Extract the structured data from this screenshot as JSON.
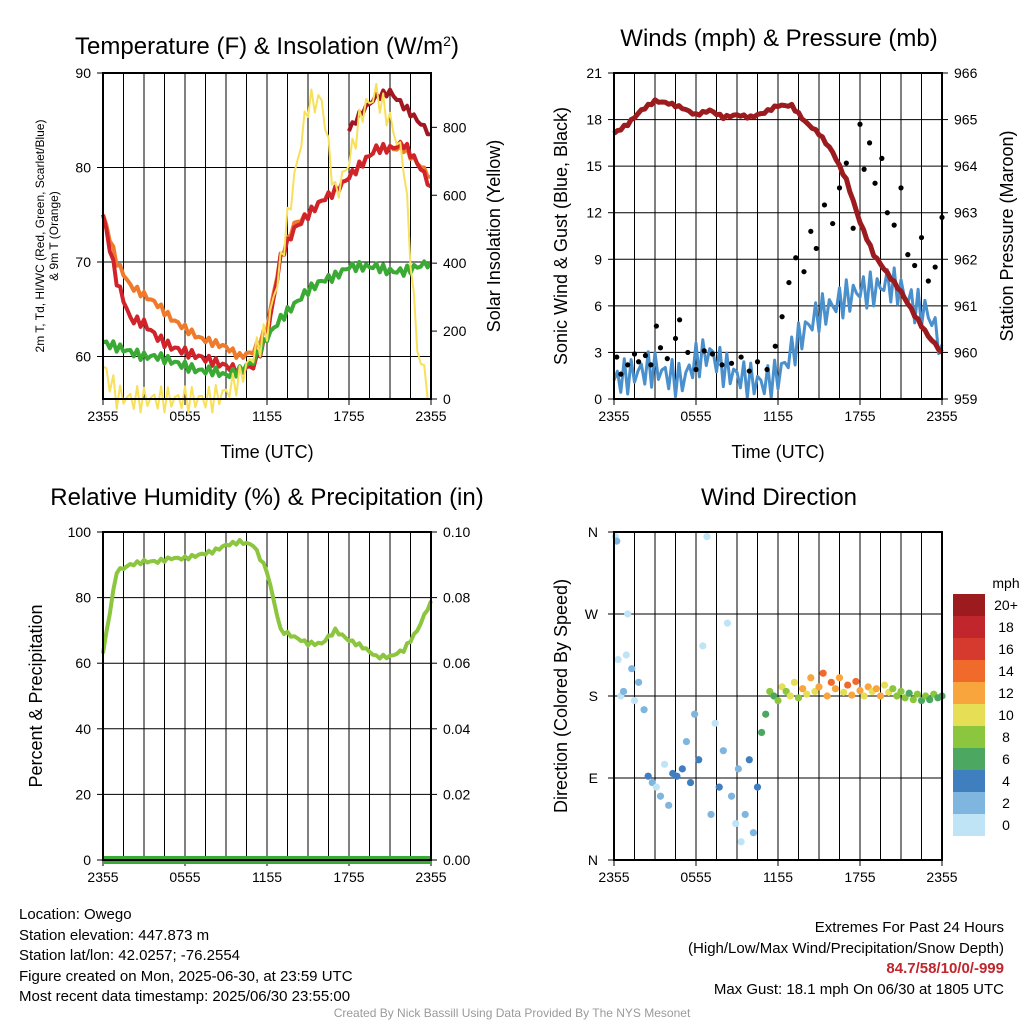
{
  "chart_data": [
    {
      "type": "line",
      "title": "Temperature (F) & Insolation (W/m²)",
      "xlabel": "Time (UTC)",
      "ylabel": "2m T, Td, HI/WC (Red, Green, Scarlet/Blue) & 9m T (Orange)",
      "y2label": "Solar Insolation (Yellow)",
      "x_ticks": [
        "2355",
        "0555",
        "1155",
        "1755",
        "2355"
      ],
      "ylim": [
        55.5,
        90
      ],
      "y_ticks": [
        60,
        70,
        80,
        90
      ],
      "y2lim": [
        0,
        960
      ],
      "y2_ticks": [
        0,
        200,
        400,
        600,
        800
      ],
      "grid": true,
      "x_hours": [
        0,
        1,
        2,
        3,
        4,
        5,
        6,
        7,
        8,
        9,
        10,
        11,
        12,
        13,
        14,
        15,
        16,
        17,
        18,
        19,
        20,
        21,
        22,
        23,
        24
      ],
      "series": [
        {
          "color": "#f07a2b",
          "axis": "left",
          "values": [
            75,
            70,
            67.5,
            66.5,
            65.5,
            64,
            63,
            62,
            61.5,
            61,
            60,
            60.5,
            63,
            70.5,
            74,
            75,
            76.5,
            77.5,
            79,
            80.5,
            82,
            82,
            82,
            80.5,
            79
          ]
        },
        {
          "color": "#d0232a",
          "axis": "left",
          "values": [
            75,
            68,
            64,
            63.5,
            62,
            61,
            60.5,
            60,
            59.5,
            59,
            58.5,
            59,
            62,
            70.5,
            73.5,
            75,
            76.5,
            77.5,
            79,
            80.5,
            82,
            82,
            82.5,
            80.5,
            78
          ]
        },
        {
          "color": "#a31820",
          "axis": "left",
          "values": [
            null,
            null,
            null,
            null,
            null,
            null,
            null,
            null,
            null,
            null,
            null,
            null,
            null,
            null,
            null,
            null,
            null,
            null,
            84,
            86,
            87.5,
            88,
            86.5,
            85,
            83.5
          ]
        },
        {
          "color": "#3aaa35",
          "axis": "left",
          "values": [
            61.5,
            61,
            60.5,
            60,
            60,
            59.5,
            59,
            58.5,
            58.5,
            58,
            58.5,
            59.5,
            62,
            64,
            65.5,
            67,
            68,
            68.5,
            69.5,
            69.5,
            69.5,
            69,
            69,
            69.5,
            70
          ]
        },
        {
          "color": "#f7e05a",
          "axis": "right",
          "values": [
            95,
            10,
            0,
            0,
            0,
            0,
            0,
            0,
            0,
            20,
            60,
            130,
            200,
            400,
            650,
            870,
            880,
            600,
            700,
            850,
            900,
            820,
            700,
            150,
            0
          ]
        }
      ]
    },
    {
      "type": "line",
      "title": "Winds (mph) & Pressure (mb)",
      "xlabel": "Time (UTC)",
      "ylabel": "Sonic Wind & Gust (Blue, Black)",
      "y2label": "Station Pressure (Maroon)",
      "x_ticks": [
        "2355",
        "0555",
        "1155",
        "1755",
        "2355"
      ],
      "ylim": [
        0,
        21
      ],
      "y_ticks": [
        0,
        3,
        6,
        9,
        12,
        15,
        18,
        21
      ],
      "y2lim": [
        959,
        966
      ],
      "y2_ticks": [
        959,
        960,
        961,
        962,
        963,
        964,
        965,
        966
      ],
      "grid": true,
      "x_hours": [
        0,
        1,
        2,
        3,
        4,
        5,
        6,
        7,
        8,
        9,
        10,
        11,
        12,
        13,
        14,
        15,
        16,
        17,
        18,
        19,
        20,
        21,
        22,
        23,
        24
      ],
      "series": [
        {
          "color": "#4a90cc",
          "axis": "left",
          "values": [
            1.2,
            1.5,
            1.8,
            2.0,
            1.5,
            1.2,
            2.5,
            3.0,
            2.0,
            1.5,
            1.2,
            1.0,
            1.5,
            3.0,
            4.5,
            5.5,
            6.0,
            6.5,
            7.0,
            7.0,
            7.5,
            7.0,
            6.0,
            5.5,
            3.5
          ]
        },
        {
          "color": "#9b1b1e",
          "axis": "right",
          "values": [
            964.7,
            964.9,
            965.2,
            965.4,
            965.35,
            965.25,
            965.1,
            965.2,
            965.05,
            965.1,
            965.05,
            965.15,
            965.3,
            965.3,
            964.95,
            964.7,
            964.3,
            963.7,
            962.8,
            962.1,
            961.7,
            961.3,
            960.8,
            960.35,
            960.0
          ]
        }
      ],
      "gust_points": [
        [
          0.2,
          2.7
        ],
        [
          0.5,
          1.6
        ],
        [
          1.0,
          2.2
        ],
        [
          1.5,
          2.9
        ],
        [
          1.8,
          2.4
        ],
        [
          2.3,
          2.8
        ],
        [
          2.7,
          2.2
        ],
        [
          3.1,
          4.7
        ],
        [
          3.4,
          3.3
        ],
        [
          3.9,
          2.6
        ],
        [
          4.5,
          3.9
        ],
        [
          4.8,
          5.1
        ],
        [
          5.4,
          3.0
        ],
        [
          6.0,
          1.9
        ],
        [
          6.6,
          3.1
        ],
        [
          7.2,
          2.9
        ],
        [
          7.9,
          2.2
        ],
        [
          8.6,
          2.3
        ],
        [
          9.3,
          2.7
        ],
        [
          9.9,
          1.8
        ],
        [
          10.5,
          2.4
        ],
        [
          11.2,
          1.9
        ],
        [
          11.8,
          3.4
        ],
        [
          12.3,
          5.3
        ],
        [
          12.8,
          7.5
        ],
        [
          13.3,
          9.1
        ],
        [
          13.9,
          8.2
        ],
        [
          14.4,
          10.8
        ],
        [
          14.8,
          9.7
        ],
        [
          15.4,
          12.5
        ],
        [
          16.0,
          11.3
        ],
        [
          16.5,
          13.6
        ],
        [
          17.0,
          15.2
        ],
        [
          17.5,
          11.0
        ],
        [
          18.0,
          17.7
        ],
        [
          18.3,
          14.8
        ],
        [
          18.7,
          16.5
        ],
        [
          19.1,
          13.9
        ],
        [
          19.6,
          15.5
        ],
        [
          20.0,
          12.0
        ],
        [
          20.5,
          11.2
        ],
        [
          21.0,
          13.6
        ],
        [
          21.5,
          9.3
        ],
        [
          22.0,
          8.6
        ],
        [
          22.5,
          10.4
        ],
        [
          23.0,
          7.6
        ],
        [
          23.5,
          8.5
        ],
        [
          24.0,
          11.7
        ]
      ]
    },
    {
      "type": "line",
      "title": "Relative Humidity (%) & Precipitation (in)",
      "ylabel": "Percent & Precipitation",
      "x_ticks": [
        "2355",
        "0555",
        "1155",
        "1755",
        "2355"
      ],
      "ylim": [
        0,
        100
      ],
      "y_ticks": [
        0,
        20,
        40,
        60,
        80,
        100
      ],
      "y2lim": [
        0,
        0.1
      ],
      "y2_ticks": [
        "0.00",
        "0.02",
        "0.04",
        "0.06",
        "0.08",
        "0.10"
      ],
      "grid": true,
      "x_hours": [
        0,
        1,
        2,
        3,
        4,
        5,
        6,
        7,
        8,
        9,
        10,
        11,
        12,
        13,
        14,
        15,
        16,
        17,
        18,
        19,
        20,
        21,
        22,
        23,
        24
      ],
      "series": [
        {
          "color": "#8cc63f",
          "axis": "left",
          "values": [
            63,
            88,
            90,
            91,
            91,
            92,
            92,
            93,
            94,
            96,
            97,
            96,
            88,
            70,
            68,
            66,
            66,
            70,
            67,
            65,
            62,
            62,
            64,
            70,
            79
          ]
        },
        {
          "color": "#3aaa35",
          "axis": "right",
          "values": [
            0,
            0,
            0,
            0,
            0,
            0,
            0,
            0,
            0,
            0,
            0,
            0,
            0,
            0,
            0,
            0,
            0,
            0,
            0,
            0,
            0,
            0,
            0,
            0,
            0
          ]
        }
      ]
    },
    {
      "type": "scatter",
      "title": "Wind Direction",
      "ylabel": "Direction (Colored By Speed)",
      "x_ticks": [
        "2355",
        "0555",
        "1155",
        "1755",
        "2355"
      ],
      "y_ticks": [
        "N",
        "E",
        "S",
        "W",
        "N"
      ],
      "ylim": [
        0,
        360
      ],
      "grid": true,
      "colorbar": {
        "unit": "mph",
        "labels": [
          "20+",
          "18",
          "16",
          "14",
          "12",
          "10",
          "8",
          "6",
          "4",
          "2",
          "0"
        ],
        "colors": [
          "#9b1b1e",
          "#c0262c",
          "#d63a2f",
          "#f06a2c",
          "#f7a53c",
          "#e6df55",
          "#8cc63f",
          "#4ca861",
          "#3f7fbf",
          "#7fb6e0",
          "#bfe4f5"
        ]
      },
      "points": [
        [
          0.1,
          355,
          0
        ],
        [
          0.2,
          350,
          1
        ],
        [
          0.3,
          220,
          0
        ],
        [
          0.5,
          180,
          0
        ],
        [
          0.7,
          185,
          1
        ],
        [
          0.9,
          225,
          0
        ],
        [
          1.0,
          270,
          0
        ],
        [
          1.3,
          210,
          1
        ],
        [
          1.5,
          175,
          0
        ],
        [
          1.8,
          195,
          1
        ],
        [
          2.2,
          165,
          1
        ],
        [
          2.5,
          92,
          2
        ],
        [
          2.8,
          85,
          1
        ],
        [
          3.1,
          80,
          0
        ],
        [
          3.4,
          70,
          1
        ],
        [
          3.7,
          105,
          0
        ],
        [
          4.0,
          60,
          1
        ],
        [
          4.3,
          95,
          2
        ],
        [
          4.6,
          92,
          2
        ],
        [
          5.0,
          100,
          2
        ],
        [
          5.3,
          130,
          1
        ],
        [
          5.6,
          85,
          2
        ],
        [
          5.9,
          160,
          1
        ],
        [
          6.2,
          110,
          2
        ],
        [
          6.5,
          235,
          0
        ],
        [
          6.8,
          355,
          0
        ],
        [
          7.1,
          50,
          1
        ],
        [
          7.4,
          150,
          0
        ],
        [
          7.7,
          80,
          2
        ],
        [
          8.0,
          120,
          1
        ],
        [
          8.3,
          260,
          0
        ],
        [
          8.6,
          70,
          1
        ],
        [
          8.9,
          40,
          0
        ],
        [
          9.1,
          100,
          1
        ],
        [
          9.3,
          20,
          0
        ],
        [
          9.6,
          50,
          1
        ],
        [
          9.9,
          110,
          2
        ],
        [
          10.2,
          30,
          1
        ],
        [
          10.5,
          80,
          2
        ],
        [
          10.8,
          140,
          3
        ],
        [
          11.1,
          160,
          3
        ],
        [
          11.4,
          185,
          4
        ],
        [
          11.7,
          180,
          3
        ],
        [
          12.0,
          175,
          4
        ],
        [
          12.3,
          190,
          5
        ],
        [
          12.6,
          185,
          4
        ],
        [
          12.9,
          180,
          5
        ],
        [
          13.2,
          195,
          5
        ],
        [
          13.5,
          178,
          4
        ],
        [
          13.8,
          188,
          6
        ],
        [
          14.1,
          182,
          5
        ],
        [
          14.4,
          200,
          6
        ],
        [
          14.7,
          185,
          5
        ],
        [
          15.0,
          190,
          6
        ],
        [
          15.3,
          205,
          7
        ],
        [
          15.6,
          180,
          6
        ],
        [
          15.9,
          195,
          7
        ],
        [
          16.2,
          188,
          6
        ],
        [
          16.5,
          200,
          6
        ],
        [
          16.8,
          184,
          5
        ],
        [
          17.1,
          192,
          7
        ],
        [
          17.4,
          181,
          6
        ],
        [
          17.7,
          196,
          7
        ],
        [
          18.0,
          186,
          6
        ],
        [
          18.3,
          180,
          5
        ],
        [
          18.6,
          190,
          6
        ],
        [
          18.9,
          185,
          5
        ],
        [
          19.2,
          188,
          6
        ],
        [
          19.5,
          180,
          6
        ],
        [
          19.8,
          192,
          5
        ],
        [
          20.1,
          184,
          5
        ],
        [
          20.4,
          188,
          4
        ],
        [
          20.7,
          180,
          4
        ],
        [
          21.0,
          185,
          4
        ],
        [
          21.3,
          178,
          4
        ],
        [
          21.6,
          183,
          3
        ],
        [
          21.9,
          176,
          4
        ],
        [
          22.2,
          182,
          4
        ],
        [
          22.5,
          175,
          3
        ],
        [
          22.8,
          180,
          4
        ],
        [
          23.1,
          176,
          3
        ],
        [
          23.4,
          182,
          4
        ],
        [
          23.7,
          178,
          3
        ],
        [
          24.0,
          180,
          3
        ]
      ]
    }
  ],
  "footer": {
    "location": "Location: Owego",
    "elevation": "Station elevation: 447.873 m",
    "latlon": "Station lat/lon: 42.0257; -76.2554",
    "created": "Figure created on Mon, 2025-06-30, at 23:59 UTC",
    "recent": "Most recent data timestamp: 2025/06/30 23:55:00",
    "extremes_title": "Extremes For Past 24 Hours",
    "extremes_sub": "(High/Low/Max Wind/Precipitation/Snow Depth)",
    "extremes_values": "84.7/58/10/0/-999",
    "max_gust": "Max Gust: 18.1 mph On 06/30 at 1805 UTC",
    "credit": "Created By Nick Bassill Using Data Provided By The NYS Mesonet"
  }
}
